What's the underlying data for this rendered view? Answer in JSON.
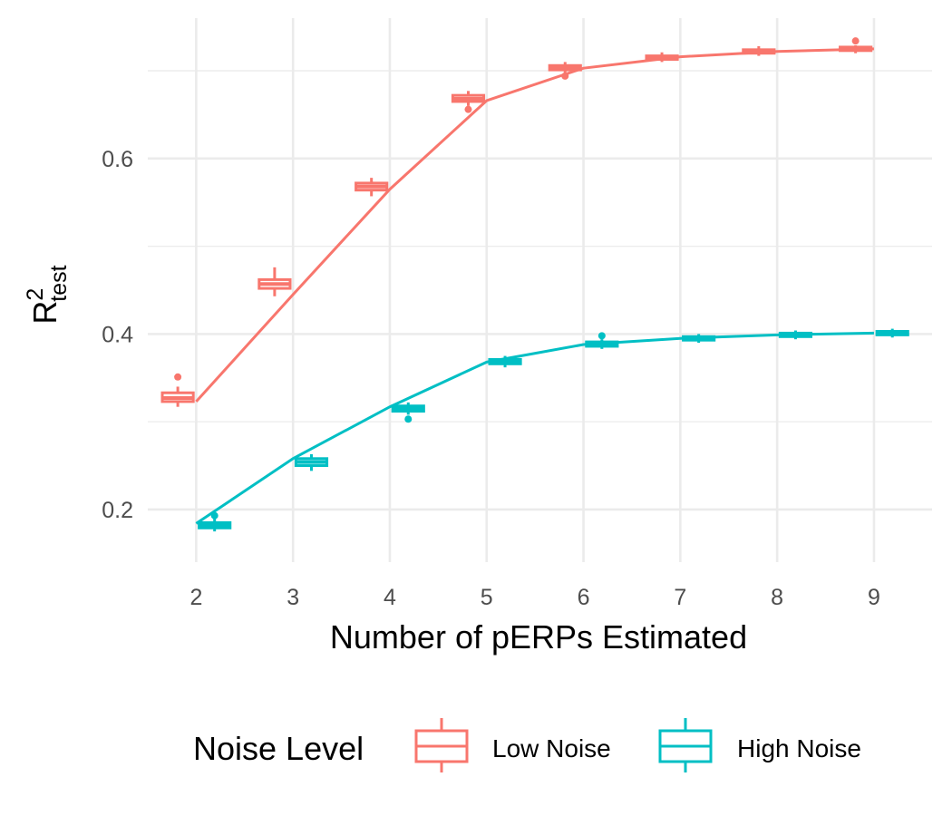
{
  "chart_data": {
    "type": "line",
    "subtype": "boxplot-with-mean-line",
    "xlabel": "Number of pERPs Estimated",
    "ylabel": {
      "base": "R",
      "sup": "2",
      "sub": "test"
    },
    "x": [
      2,
      3,
      4,
      5,
      6,
      7,
      8,
      9
    ],
    "xlim": [
      1.5,
      9.6
    ],
    "ylim": [
      0.14,
      0.76
    ],
    "yticks": [
      0.2,
      0.4,
      0.6
    ],
    "ytick_labels": [
      "0.2",
      "0.4",
      "0.6"
    ],
    "xtick_labels": [
      "2",
      "3",
      "4",
      "5",
      "6",
      "7",
      "8",
      "9"
    ],
    "grid": true,
    "legend": {
      "title": "Noise Level",
      "position": "bottom"
    },
    "colors": {
      "low": "#F8766D",
      "high": "#00BFC4",
      "grid": "#EBEBEB"
    },
    "series": [
      {
        "name": "Low Noise",
        "color": "#F8766D",
        "mean": [
          0.323,
          0.445,
          0.565,
          0.666,
          0.703,
          0.716,
          0.722,
          0.725
        ],
        "boxes": [
          {
            "x": 2,
            "q1": 0.323,
            "med": 0.327,
            "q3": 0.333,
            "wlo": 0.317,
            "whi": 0.34,
            "out": [
              0.351
            ]
          },
          {
            "x": 3,
            "q1": 0.452,
            "med": 0.457,
            "q3": 0.462,
            "wlo": 0.443,
            "whi": 0.476,
            "out": []
          },
          {
            "x": 4,
            "q1": 0.564,
            "med": 0.568,
            "q3": 0.572,
            "wlo": 0.557,
            "whi": 0.578,
            "out": []
          },
          {
            "x": 5,
            "q1": 0.665,
            "med": 0.668,
            "q3": 0.672,
            "wlo": 0.66,
            "whi": 0.677,
            "out": [
              0.656
            ]
          },
          {
            "x": 6,
            "q1": 0.701,
            "med": 0.703,
            "q3": 0.706,
            "wlo": 0.698,
            "whi": 0.71,
            "out": [
              0.694
            ]
          },
          {
            "x": 7,
            "q1": 0.713,
            "med": 0.715,
            "q3": 0.717,
            "wlo": 0.71,
            "whi": 0.721,
            "out": []
          },
          {
            "x": 8,
            "q1": 0.72,
            "med": 0.722,
            "q3": 0.724,
            "wlo": 0.717,
            "whi": 0.728,
            "out": []
          },
          {
            "x": 9,
            "q1": 0.723,
            "med": 0.725,
            "q3": 0.727,
            "wlo": 0.72,
            "whi": 0.729,
            "out": [
              0.734
            ]
          }
        ]
      },
      {
        "name": "High Noise",
        "color": "#00BFC4",
        "mean": [
          0.184,
          0.258,
          0.317,
          0.368,
          0.388,
          0.395,
          0.399,
          0.401
        ],
        "boxes": [
          {
            "x": 2,
            "q1": 0.179,
            "med": 0.182,
            "q3": 0.185,
            "wlo": 0.175,
            "whi": 0.19,
            "out": [
              0.193
            ]
          },
          {
            "x": 3,
            "q1": 0.25,
            "med": 0.254,
            "q3": 0.258,
            "wlo": 0.244,
            "whi": 0.263,
            "out": []
          },
          {
            "x": 4,
            "q1": 0.312,
            "med": 0.315,
            "q3": 0.318,
            "wlo": 0.308,
            "whi": 0.322,
            "out": [
              0.303
            ]
          },
          {
            "x": 5,
            "q1": 0.366,
            "med": 0.368,
            "q3": 0.371,
            "wlo": 0.362,
            "whi": 0.375,
            "out": []
          },
          {
            "x": 6,
            "q1": 0.386,
            "med": 0.388,
            "q3": 0.391,
            "wlo": 0.383,
            "whi": 0.394,
            "out": [
              0.398
            ]
          },
          {
            "x": 7,
            "q1": 0.393,
            "med": 0.395,
            "q3": 0.397,
            "wlo": 0.39,
            "whi": 0.4,
            "out": []
          },
          {
            "x": 8,
            "q1": 0.397,
            "med": 0.399,
            "q3": 0.401,
            "wlo": 0.394,
            "whi": 0.404,
            "out": []
          },
          {
            "x": 9,
            "q1": 0.399,
            "med": 0.401,
            "q3": 0.403,
            "wlo": 0.396,
            "whi": 0.406,
            "out": []
          }
        ]
      }
    ]
  }
}
